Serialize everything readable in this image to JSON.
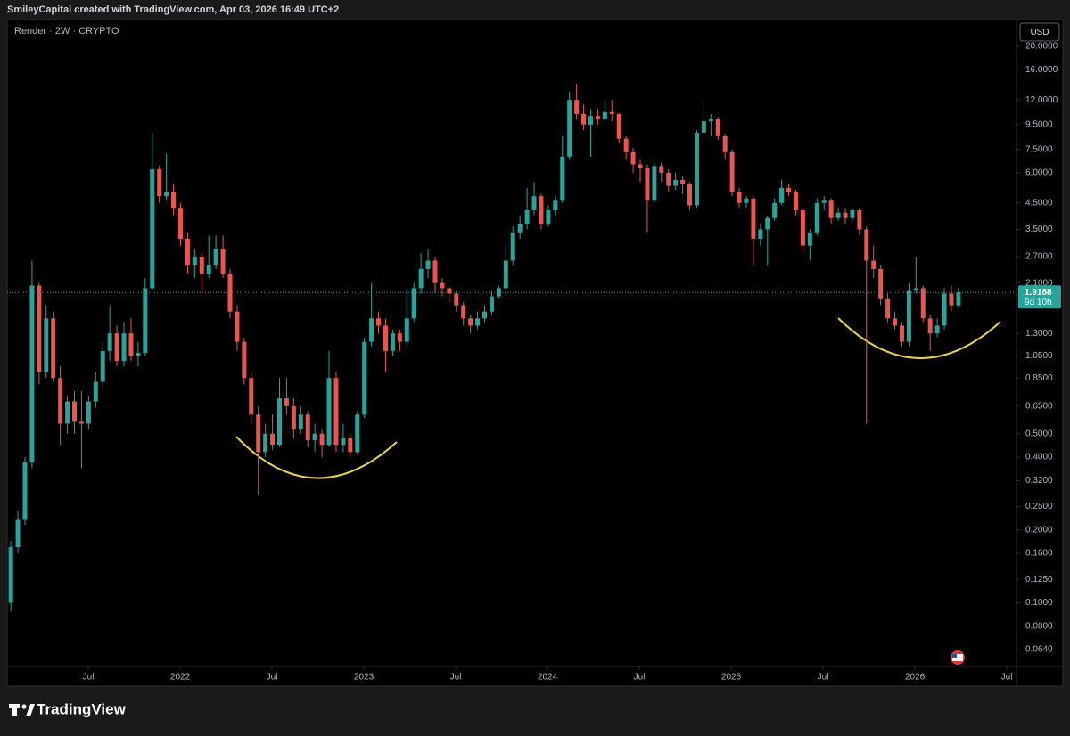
{
  "header": {
    "text": "SmileyCapital created with TradingView.com, Apr 03, 2026 16:49 UTC+2"
  },
  "chart_data": {
    "type": "candlestick",
    "title": "Render · 2W · CRYPTO",
    "currency": "USD",
    "log_scale": true,
    "up_color": "#26a69a",
    "down_color": "#ef5350",
    "last_price": 1.9188,
    "countdown": "9d 10h",
    "xlim": [
      2021.058,
      2026.553
    ],
    "ylim": [
      0.0545,
      25.8
    ],
    "xticks": [
      {
        "value": 2021.5,
        "label": "Jul"
      },
      2022,
      {
        "value": 2022.5,
        "label": "Jul"
      },
      2023,
      {
        "value": 2023.5,
        "label": "Jul"
      },
      2024,
      {
        "value": 2024.5,
        "label": "Jul"
      },
      2025,
      {
        "value": 2025.5,
        "label": "Jul"
      },
      2026,
      {
        "value": 2026.5,
        "label": "Jul"
      }
    ],
    "yticks": [
      {
        "value": 0.064,
        "label": "0.0640"
      },
      {
        "value": 0.08,
        "label": "0.0800"
      },
      {
        "value": 0.1,
        "label": "0.1000"
      },
      {
        "value": 0.125,
        "label": "0.1250"
      },
      {
        "value": 0.16,
        "label": "0.1600"
      },
      {
        "value": 0.2,
        "label": "0.2000"
      },
      {
        "value": 0.25,
        "label": "0.2500"
      },
      {
        "value": 0.32,
        "label": "0.3200"
      },
      {
        "value": 0.4,
        "label": "0.4000"
      },
      {
        "value": 0.5,
        "label": "0.5000"
      },
      {
        "value": 0.65,
        "label": "0.6500"
      },
      {
        "value": 0.85,
        "label": "0.8500"
      },
      {
        "value": 1.05,
        "label": "1.0500"
      },
      {
        "value": 1.3,
        "label": "1.3000"
      },
      {
        "value": 2.1,
        "label": "2.1000"
      },
      {
        "value": 2.7,
        "label": "2.7000"
      },
      {
        "value": 3.5,
        "label": "3.5000"
      },
      {
        "value": 4.5,
        "label": "4.5000"
      },
      {
        "value": 6,
        "label": "6.0000"
      },
      {
        "value": 7.5,
        "label": "7.5000"
      },
      {
        "value": 9.5,
        "label": "9.5000"
      },
      {
        "value": 12,
        "label": "12.0000"
      },
      {
        "value": 16,
        "label": "16.0000"
      },
      {
        "value": 20,
        "label": "20.0000"
      }
    ],
    "x": [
      2021.078,
      2021.1165,
      2021.155,
      2021.1935,
      2021.232,
      2021.2705,
      2021.309,
      2021.3475,
      2021.386,
      2021.4245,
      2021.463,
      2021.5015,
      2021.54,
      2021.5785,
      2021.617,
      2021.6555,
      2021.694,
      2021.7325,
      2021.771,
      2021.8095,
      2021.848,
      2021.8865,
      2021.925,
      2021.9635,
      2022.002,
      2022.0405,
      2022.079,
      2022.1175,
      2022.156,
      2022.1945,
      2022.233,
      2022.2715,
      2022.31,
      2022.3485,
      2022.387,
      2022.4255,
      2022.464,
      2022.5025,
      2022.541,
      2022.5795,
      2022.618,
      2022.6565,
      2022.695,
      2022.7335,
      2022.772,
      2022.8105,
      2022.849,
      2022.8875,
      2022.926,
      2022.9645,
      2023.003,
      2023.0415,
      2023.08,
      2023.1185,
      2023.157,
      2023.1955,
      2023.234,
      2023.2725,
      2023.311,
      2023.3495,
      2023.388,
      2023.4265,
      2023.465,
      2023.5035,
      2023.542,
      2023.5805,
      2023.619,
      2023.6575,
      2023.696,
      2023.7345,
      2023.773,
      2023.8115,
      2023.85,
      2023.8885,
      2023.927,
      2023.9655,
      2024.004,
      2024.0425,
      2024.081,
      2024.1195,
      2024.158,
      2024.1965,
      2024.235,
      2024.2735,
      2024.312,
      2024.3505,
      2024.389,
      2024.4275,
      2024.466,
      2024.5045,
      2024.543,
      2024.5815,
      2024.62,
      2024.6585,
      2024.697,
      2024.7355,
      2024.774,
      2024.8125,
      2024.851,
      2024.8895,
      2024.928,
      2024.9665,
      2025.005,
      2025.0435,
      2025.082,
      2025.1205,
      2025.159,
      2025.1975,
      2025.236,
      2025.2745,
      2025.313,
      2025.3515,
      2025.39,
      2025.4285,
      2025.467,
      2025.5055,
      2025.544,
      2025.5825,
      2025.621,
      2025.6595,
      2025.698,
      2025.7365,
      2025.775,
      2025.8135,
      2025.852,
      2025.8905,
      2025.929,
      2025.9675,
      2026.006,
      2026.0445,
      2026.083,
      2026.1215,
      2026.16,
      2026.1985,
      2026.237
    ],
    "open": [
      0.1,
      0.17,
      0.22,
      0.38,
      2.05,
      0.9,
      1.5,
      0.85,
      0.55,
      0.68,
      0.56,
      0.55,
      0.68,
      0.82,
      1.1,
      1.3,
      1.0,
      1.3,
      1.05,
      1.08,
      2.0,
      6.2,
      4.8,
      5.0,
      4.3,
      3.2,
      2.5,
      2.7,
      2.3,
      2.5,
      2.9,
      2.3,
      1.6,
      1.2,
      0.85,
      0.6,
      0.42,
      0.5,
      0.45,
      0.7,
      0.65,
      0.52,
      0.6,
      0.47,
      0.5,
      0.45,
      0.85,
      0.45,
      0.48,
      0.42,
      0.6,
      1.2,
      1.5,
      1.4,
      1.1,
      1.3,
      1.2,
      1.5,
      2.0,
      2.4,
      2.6,
      2.1,
      2.0,
      1.9,
      1.7,
      1.5,
      1.4,
      1.5,
      1.6,
      1.85,
      2.0,
      2.6,
      3.4,
      3.7,
      4.2,
      4.8,
      3.7,
      4.2,
      4.6,
      7.0,
      12.0,
      10.5,
      9.5,
      10.3,
      10.0,
      10.7,
      10.5,
      8.3,
      7.3,
      6.5,
      6.3,
      4.6,
      6.4,
      6.0,
      5.3,
      5.6,
      5.4,
      4.4,
      8.8,
      9.8,
      10.0,
      8.5,
      7.3,
      5.0,
      4.5,
      4.7,
      3.2,
      3.5,
      3.9,
      4.5,
      5.2,
      5.0,
      4.2,
      3.0,
      3.4,
      4.5,
      4.6,
      3.9,
      4.1,
      3.9,
      4.2,
      3.5,
      2.6,
      2.4,
      1.8,
      1.5,
      1.4,
      1.2,
      1.95,
      2.0,
      1.5,
      1.3,
      1.4,
      1.9,
      1.7
    ],
    "high": [
      0.18,
      0.24,
      0.4,
      2.6,
      2.1,
      1.7,
      1.6,
      0.95,
      0.72,
      0.75,
      0.75,
      0.72,
      0.9,
      1.2,
      1.7,
      1.4,
      1.45,
      1.5,
      1.2,
      2.2,
      8.8,
      6.4,
      7.2,
      5.4,
      4.5,
      3.4,
      2.9,
      2.8,
      3.3,
      3.3,
      3.3,
      2.4,
      1.7,
      1.25,
      0.9,
      0.65,
      0.55,
      0.6,
      0.85,
      0.85,
      0.7,
      0.65,
      0.62,
      0.55,
      0.52,
      1.1,
      0.9,
      0.55,
      0.5,
      0.62,
      1.25,
      2.1,
      1.6,
      1.5,
      1.35,
      1.35,
      2.0,
      2.1,
      2.8,
      2.9,
      2.7,
      2.2,
      2.05,
      1.95,
      1.75,
      1.55,
      1.6,
      1.7,
      1.95,
      2.05,
      3.0,
      3.6,
      4.0,
      5.2,
      5.5,
      4.9,
      4.4,
      4.8,
      8.5,
      13,
      14,
      11.5,
      11,
      11,
      12,
      12,
      10.6,
      8.5,
      7.6,
      6.8,
      6.5,
      6.6,
      6.6,
      6.2,
      6.0,
      5.8,
      5.5,
      9.0,
      12,
      10.5,
      10.2,
      8.7,
      7.5,
      5.2,
      4.8,
      4.8,
      3.7,
      4.0,
      4.7,
      5.6,
      5.4,
      5.1,
      4.3,
      3.5,
      4.7,
      4.8,
      4.7,
      4.3,
      4.3,
      4.3,
      4.3,
      3.6,
      3.0,
      2.5,
      1.9,
      1.6,
      1.45,
      2.1,
      2.7,
      2.05,
      1.55,
      1.5,
      2.0,
      2.05,
      2.0
    ],
    "low": [
      0.092,
      0.16,
      0.21,
      0.36,
      0.8,
      0.85,
      0.82,
      0.45,
      0.5,
      0.5,
      0.36,
      0.52,
      0.64,
      0.78,
      1.0,
      0.95,
      0.95,
      1.0,
      0.95,
      1.05,
      1.95,
      4.5,
      4.6,
      4.0,
      3.0,
      2.3,
      2.2,
      1.9,
      2.2,
      2.4,
      2.2,
      1.5,
      1.1,
      0.8,
      0.55,
      0.28,
      0.4,
      0.43,
      0.44,
      0.6,
      0.48,
      0.5,
      0.44,
      0.42,
      0.4,
      0.44,
      0.42,
      0.42,
      0.4,
      0.41,
      0.58,
      1.15,
      1.3,
      0.9,
      1.05,
      1.1,
      1.15,
      1.45,
      1.9,
      2.2,
      1.9,
      1.85,
      1.75,
      1.6,
      1.4,
      1.3,
      1.35,
      1.45,
      1.55,
      1.8,
      1.95,
      2.5,
      3.2,
      3.5,
      4.0,
      3.5,
      3.6,
      4.0,
      4.5,
      6.8,
      10,
      9.0,
      7.0,
      9.5,
      9.8,
      9.8,
      8.0,
      6.8,
      6.0,
      5.5,
      3.4,
      4.5,
      5.5,
      5.0,
      5.1,
      4.9,
      4.2,
      4.3,
      8.5,
      8.5,
      8.2,
      6.8,
      4.8,
      4.3,
      4.3,
      2.5,
      3.0,
      2.5,
      3.8,
      4.4,
      4.8,
      4.0,
      2.8,
      2.6,
      3.3,
      4.2,
      3.7,
      3.8,
      3.7,
      3.8,
      3.3,
      0.55,
      2.2,
      1.7,
      1.45,
      1.35,
      1.15,
      1.15,
      1.9,
      1.45,
      1.1,
      1.25,
      1.35,
      1.6,
      1.65
    ],
    "close": [
      0.17,
      0.22,
      0.38,
      2.05,
      0.9,
      1.5,
      0.85,
      0.55,
      0.68,
      0.56,
      0.55,
      0.68,
      0.82,
      1.1,
      1.3,
      1.0,
      1.3,
      1.05,
      1.08,
      2.0,
      6.2,
      4.8,
      5.0,
      4.3,
      3.2,
      2.5,
      2.7,
      2.3,
      2.5,
      2.9,
      2.3,
      1.6,
      1.2,
      0.85,
      0.6,
      0.42,
      0.5,
      0.45,
      0.7,
      0.65,
      0.52,
      0.6,
      0.47,
      0.5,
      0.45,
      0.85,
      0.45,
      0.48,
      0.42,
      0.6,
      1.2,
      1.5,
      1.4,
      1.1,
      1.3,
      1.2,
      1.5,
      2.0,
      2.4,
      2.6,
      2.1,
      2.0,
      1.9,
      1.7,
      1.5,
      1.4,
      1.5,
      1.6,
      1.85,
      2.0,
      2.6,
      3.4,
      3.7,
      4.2,
      4.8,
      3.7,
      4.2,
      4.6,
      7.0,
      12.0,
      10.5,
      9.5,
      10.3,
      10.0,
      10.7,
      10.5,
      8.3,
      7.3,
      6.5,
      6.3,
      4.6,
      6.4,
      6.0,
      5.3,
      5.6,
      5.4,
      4.4,
      8.8,
      9.8,
      10.0,
      8.5,
      7.3,
      5.0,
      4.5,
      4.7,
      3.2,
      3.5,
      3.9,
      4.5,
      5.2,
      5.0,
      4.2,
      3.0,
      3.4,
      4.5,
      4.6,
      3.9,
      4.1,
      3.9,
      4.2,
      3.5,
      2.6,
      2.4,
      1.8,
      1.5,
      1.4,
      1.2,
      1.95,
      2.0,
      1.5,
      1.3,
      1.4,
      1.9,
      1.7,
      1.9188
    ]
  },
  "footer": {
    "brand": "TradingView"
  }
}
